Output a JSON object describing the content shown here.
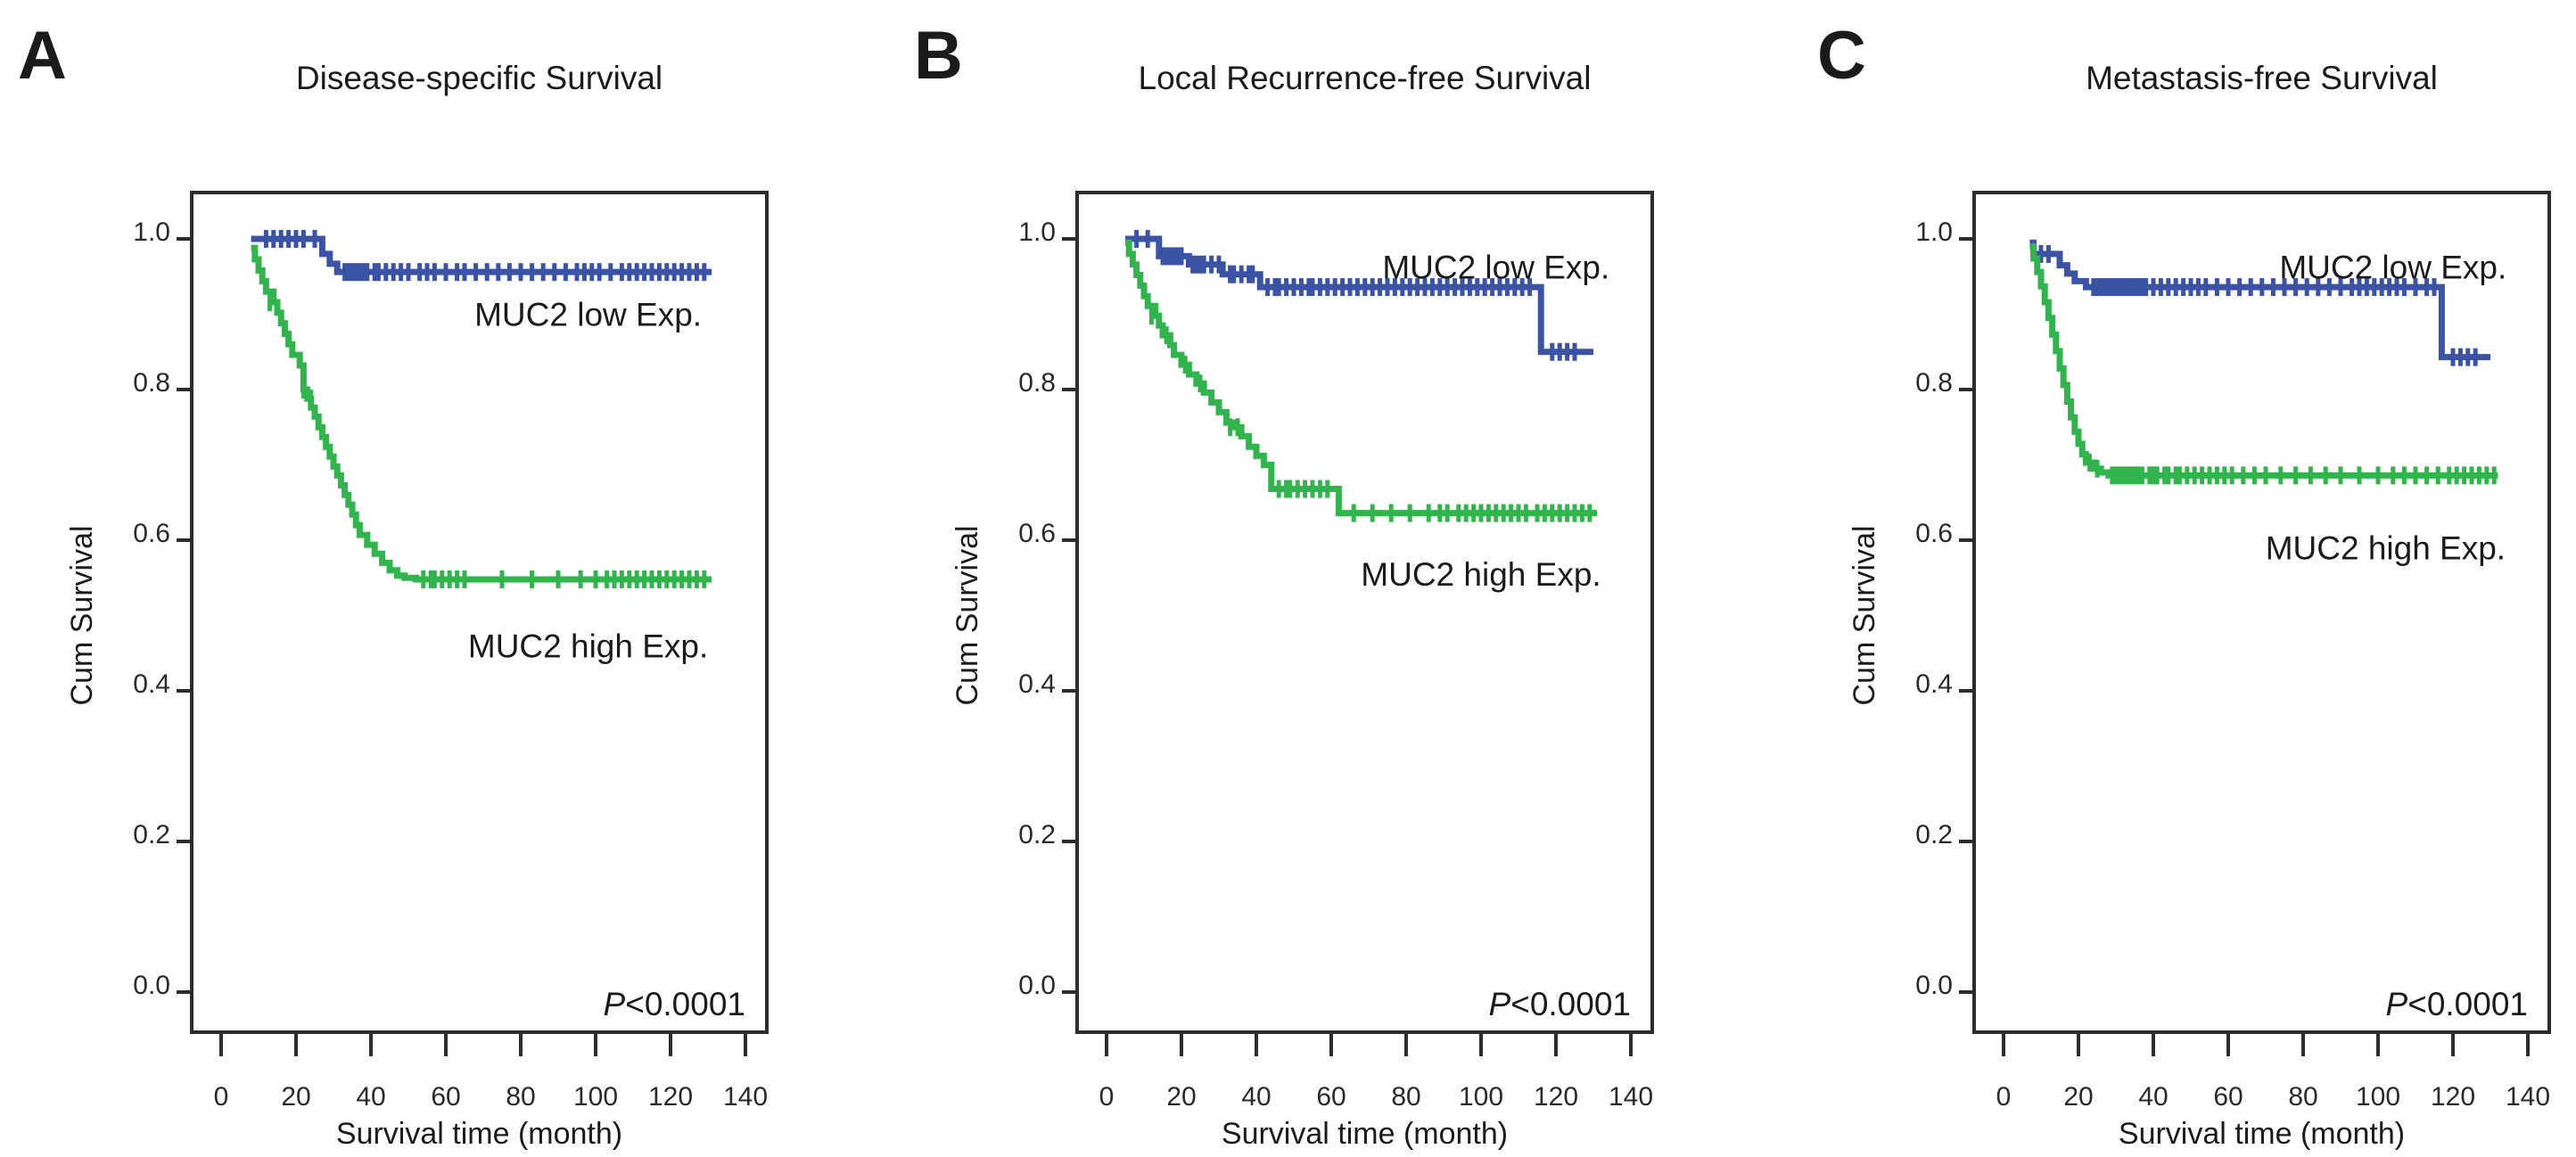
{
  "colors": {
    "muc2_low": "#3b53a5",
    "muc2_high": "#31b44c",
    "axis": "#2d2d2d",
    "text": "#1b1b1b",
    "background": "#ffffff"
  },
  "chart_data": [
    {
      "type": "line",
      "subtype": "kaplan-meier-step",
      "panel_letter": "A",
      "title": "Disease-specific Survival",
      "xlabel": "Survival time (month)",
      "ylabel": "Cum Survival",
      "xlim": [
        0,
        147
      ],
      "ylim": [
        0,
        1.05
      ],
      "x_tick_values": [
        0,
        20,
        40,
        60,
        80,
        100,
        120,
        140
      ],
      "x_tick_labels": [
        "0",
        "20",
        "40",
        "60",
        "80",
        "100",
        "120",
        "140"
      ],
      "y_tick_values": [
        1.0,
        0.8,
        0.6,
        0.4,
        0.2,
        0.0
      ],
      "y_tick_labels": [
        "1.0",
        "0.8",
        "0.6",
        "0.4",
        "0.2",
        "0.0"
      ],
      "grid": false,
      "p_value_italic": "P",
      "p_value_text": "<0.0001",
      "series": [
        {
          "name": "MUC2 low Exp.",
          "color_key": "muc2_low",
          "label_pos": [
            98,
            0.9
          ],
          "steps": [
            [
              8,
              1.0
            ],
            [
              27,
              0.98
            ],
            [
              29,
              0.967
            ],
            [
              31,
              0.956
            ],
            [
              131,
              0.956
            ]
          ],
          "censor_groups": [
            {
              "y": 1.0,
              "xs": [
                12,
                14,
                16,
                18,
                20,
                22,
                25
              ]
            },
            {
              "y": 0.956,
              "xs": [
                33,
                34,
                35,
                36,
                37,
                38,
                39,
                41,
                42,
                44,
                46,
                48,
                50,
                53,
                55,
                57,
                60,
                63,
                65,
                68,
                71,
                74,
                77,
                80,
                83,
                86,
                89,
                92,
                95,
                97,
                99,
                101,
                104,
                107,
                109,
                111,
                113,
                115,
                117,
                119,
                121,
                123,
                125,
                127,
                129
              ]
            }
          ]
        },
        {
          "name": "MUC2 high Exp.",
          "color_key": "muc2_high",
          "label_pos": [
            98,
            0.46
          ],
          "steps": [
            [
              8,
              0.988
            ],
            [
              9,
              0.973
            ],
            [
              10,
              0.958
            ],
            [
              11,
              0.944
            ],
            [
              12,
              0.93
            ],
            [
              14,
              0.916
            ],
            [
              15,
              0.902
            ],
            [
              16,
              0.888
            ],
            [
              17,
              0.874
            ],
            [
              18,
              0.86
            ],
            [
              19,
              0.846
            ],
            [
              21,
              0.832
            ],
            [
              22,
              0.8
            ],
            [
              23,
              0.788
            ],
            [
              24,
              0.776
            ],
            [
              25,
              0.764
            ],
            [
              26,
              0.75
            ],
            [
              27,
              0.737
            ],
            [
              28,
              0.724
            ],
            [
              29,
              0.711
            ],
            [
              30,
              0.698
            ],
            [
              31,
              0.686
            ],
            [
              32,
              0.673
            ],
            [
              33,
              0.66
            ],
            [
              34,
              0.647
            ],
            [
              35,
              0.634
            ],
            [
              36,
              0.62
            ],
            [
              37,
              0.607
            ],
            [
              39,
              0.594
            ],
            [
              41,
              0.582
            ],
            [
              43,
              0.57
            ],
            [
              45,
              0.56
            ],
            [
              47,
              0.553
            ],
            [
              49,
              0.55
            ],
            [
              52,
              0.548
            ],
            [
              131,
              0.548
            ]
          ],
          "censor_groups": [
            {
              "y": 0.916,
              "xs": [
                13
              ]
            },
            {
              "y": 0.8,
              "xs": [
                22
              ]
            },
            {
              "y": 0.788,
              "xs": [
                24
              ]
            },
            {
              "y": 0.548,
              "xs": [
                54,
                56,
                57,
                59,
                61,
                63,
                65,
                75,
                83,
                90,
                96,
                100,
                103,
                105,
                107,
                109,
                111,
                113,
                115,
                117,
                119,
                121,
                123,
                125,
                127,
                129
              ]
            }
          ]
        }
      ]
    },
    {
      "type": "line",
      "subtype": "kaplan-meier-step",
      "panel_letter": "B",
      "title": "Local Recurrence-free Survival",
      "xlabel": "Survival time (month)",
      "ylabel": "Cum Survival",
      "xlim": [
        0,
        147
      ],
      "ylim": [
        0,
        1.05
      ],
      "x_tick_values": [
        0,
        20,
        40,
        60,
        80,
        100,
        120,
        140
      ],
      "x_tick_labels": [
        "0",
        "20",
        "40",
        "60",
        "80",
        "100",
        "120",
        "140"
      ],
      "y_tick_values": [
        1.0,
        0.8,
        0.6,
        0.4,
        0.2,
        0.0
      ],
      "y_tick_labels": [
        "1.0",
        "0.8",
        "0.6",
        "0.4",
        "0.2",
        "0.0"
      ],
      "grid": false,
      "p_value_italic": "P",
      "p_value_text": "<0.0001",
      "series": [
        {
          "name": "MUC2 low Exp.",
          "color_key": "muc2_low",
          "label_pos": [
            104,
            0.963
          ],
          "steps": [
            [
              5,
              1.0
            ],
            [
              14,
              0.977
            ],
            [
              22,
              0.966
            ],
            [
              31,
              0.953
            ],
            [
              41,
              0.936
            ],
            [
              116,
              0.85
            ],
            [
              130,
              0.85
            ]
          ],
          "censor_groups": [
            {
              "y": 1.0,
              "xs": [
                8,
                11
              ]
            },
            {
              "y": 0.977,
              "xs": [
                15,
                16,
                17,
                18,
                19,
                20
              ]
            },
            {
              "y": 0.966,
              "xs": [
                23,
                24,
                25,
                26,
                28,
                30
              ]
            },
            {
              "y": 0.953,
              "xs": [
                33,
                34,
                36,
                38,
                39
              ]
            },
            {
              "y": 0.936,
              "xs": [
                43,
                45,
                46,
                48,
                50,
                52,
                54,
                55,
                57,
                59,
                61,
                63,
                65,
                67,
                69,
                71,
                73,
                75,
                77,
                79,
                81,
                83,
                85,
                87,
                89,
                91,
                93,
                95,
                97,
                99,
                101,
                103,
                105,
                107,
                109,
                111,
                113
              ]
            },
            {
              "y": 0.85,
              "xs": [
                119,
                121,
                123,
                125
              ]
            }
          ]
        },
        {
          "name": "MUC2 high Exp.",
          "color_key": "muc2_high",
          "label_pos": [
            100,
            0.555
          ],
          "steps": [
            [
              5,
              0.995
            ],
            [
              6,
              0.98
            ],
            [
              7,
              0.966
            ],
            [
              8,
              0.952
            ],
            [
              9,
              0.938
            ],
            [
              10,
              0.924
            ],
            [
              11,
              0.911
            ],
            [
              13,
              0.898
            ],
            [
              14,
              0.885
            ],
            [
              15,
              0.872
            ],
            [
              17,
              0.859
            ],
            [
              18,
              0.846
            ],
            [
              20,
              0.833
            ],
            [
              22,
              0.82
            ],
            [
              24,
              0.808
            ],
            [
              26,
              0.796
            ],
            [
              28,
              0.783
            ],
            [
              30,
              0.77
            ],
            [
              32,
              0.756
            ],
            [
              34,
              0.75
            ],
            [
              36,
              0.738
            ],
            [
              38,
              0.724
            ],
            [
              40,
              0.712
            ],
            [
              42,
              0.7
            ],
            [
              44,
              0.668
            ],
            [
              62,
              0.636
            ],
            [
              131,
              0.636
            ]
          ],
          "censor_groups": [
            {
              "y": 0.898,
              "xs": [
                12
              ]
            },
            {
              "y": 0.872,
              "xs": [
                16
              ]
            },
            {
              "y": 0.833,
              "xs": [
                21
              ]
            },
            {
              "y": 0.808,
              "xs": [
                25
              ]
            },
            {
              "y": 0.75,
              "xs": [
                33,
                35
              ]
            },
            {
              "y": 0.668,
              "xs": [
                46,
                48,
                49,
                51,
                53,
                55,
                57,
                59
              ]
            },
            {
              "y": 0.636,
              "xs": [
                66,
                71,
                76,
                81,
                86,
                89,
                91,
                94,
                96,
                98,
                100,
                102,
                104,
                106,
                108,
                110,
                112,
                115,
                117,
                119,
                121,
                123,
                125,
                127,
                129
              ]
            }
          ]
        }
      ]
    },
    {
      "type": "line",
      "subtype": "kaplan-meier-step",
      "panel_letter": "C",
      "title": "Metastasis-free Survival",
      "xlabel": "Survival time (month)",
      "ylabel": "Cum Survival",
      "xlim": [
        0,
        147
      ],
      "ylim": [
        0,
        1.05
      ],
      "x_tick_values": [
        0,
        20,
        40,
        60,
        80,
        100,
        120,
        140
      ],
      "x_tick_labels": [
        "0",
        "20",
        "40",
        "60",
        "80",
        "100",
        "120",
        "140"
      ],
      "y_tick_values": [
        1.0,
        0.8,
        0.6,
        0.4,
        0.2,
        0.0
      ],
      "y_tick_labels": [
        "1.0",
        "0.8",
        "0.6",
        "0.4",
        "0.2",
        "0.0"
      ],
      "grid": false,
      "p_value_italic": "P",
      "p_value_text": "<0.0001",
      "series": [
        {
          "name": "MUC2 low Exp.",
          "color_key": "muc2_low",
          "label_pos": [
            104,
            0.963
          ],
          "steps": [
            [
              7,
              0.995
            ],
            [
              8,
              0.98
            ],
            [
              15,
              0.965
            ],
            [
              17,
              0.954
            ],
            [
              19,
              0.944
            ],
            [
              22,
              0.936
            ],
            [
              117,
              0.843
            ],
            [
              130,
              0.843
            ]
          ],
          "censor_groups": [
            {
              "y": 0.98,
              "xs": [
                10,
                12
              ]
            },
            {
              "y": 0.936,
              "xs": [
                24,
                25,
                26,
                27,
                28,
                29,
                30,
                31,
                32,
                33,
                34,
                35,
                36,
                37,
                38,
                40,
                42,
                44,
                46,
                48,
                50,
                52,
                54,
                57,
                60,
                63,
                66,
                69,
                72,
                75,
                78,
                81,
                84,
                87,
                90,
                93,
                95,
                97,
                99,
                101,
                103,
                105,
                107,
                110,
                113,
                115
              ]
            },
            {
              "y": 0.843,
              "xs": [
                120,
                122,
                124,
                126
              ]
            }
          ]
        },
        {
          "name": "MUC2 high Exp.",
          "color_key": "muc2_high",
          "label_pos": [
            102,
            0.59
          ],
          "steps": [
            [
              7,
              0.99
            ],
            [
              8,
              0.974
            ],
            [
              9,
              0.956
            ],
            [
              10,
              0.937
            ],
            [
              11,
              0.916
            ],
            [
              12,
              0.895
            ],
            [
              13,
              0.873
            ],
            [
              14,
              0.851
            ],
            [
              15,
              0.828
            ],
            [
              16,
              0.806
            ],
            [
              17,
              0.784
            ],
            [
              18,
              0.763
            ],
            [
              19,
              0.744
            ],
            [
              20,
              0.728
            ],
            [
              21,
              0.714
            ],
            [
              22,
              0.703
            ],
            [
              24,
              0.695
            ],
            [
              26,
              0.69
            ],
            [
              28,
              0.686
            ],
            [
              132,
              0.686
            ]
          ],
          "censor_groups": [
            {
              "y": 0.703,
              "xs": [
                23
              ]
            },
            {
              "y": 0.695,
              "xs": [
                25
              ]
            },
            {
              "y": 0.686,
              "xs": [
                29,
                30,
                31,
                32,
                33,
                34,
                35,
                36,
                37,
                39,
                40,
                41,
                43,
                44,
                46,
                47,
                49,
                51,
                53,
                55,
                57,
                59,
                61,
                64,
                67,
                70,
                74,
                78,
                82,
                86,
                90,
                95,
                100,
                104,
                107,
                110,
                113,
                116,
                119,
                121,
                123,
                125,
                127,
                129,
                131
              ]
            }
          ]
        }
      ]
    }
  ]
}
